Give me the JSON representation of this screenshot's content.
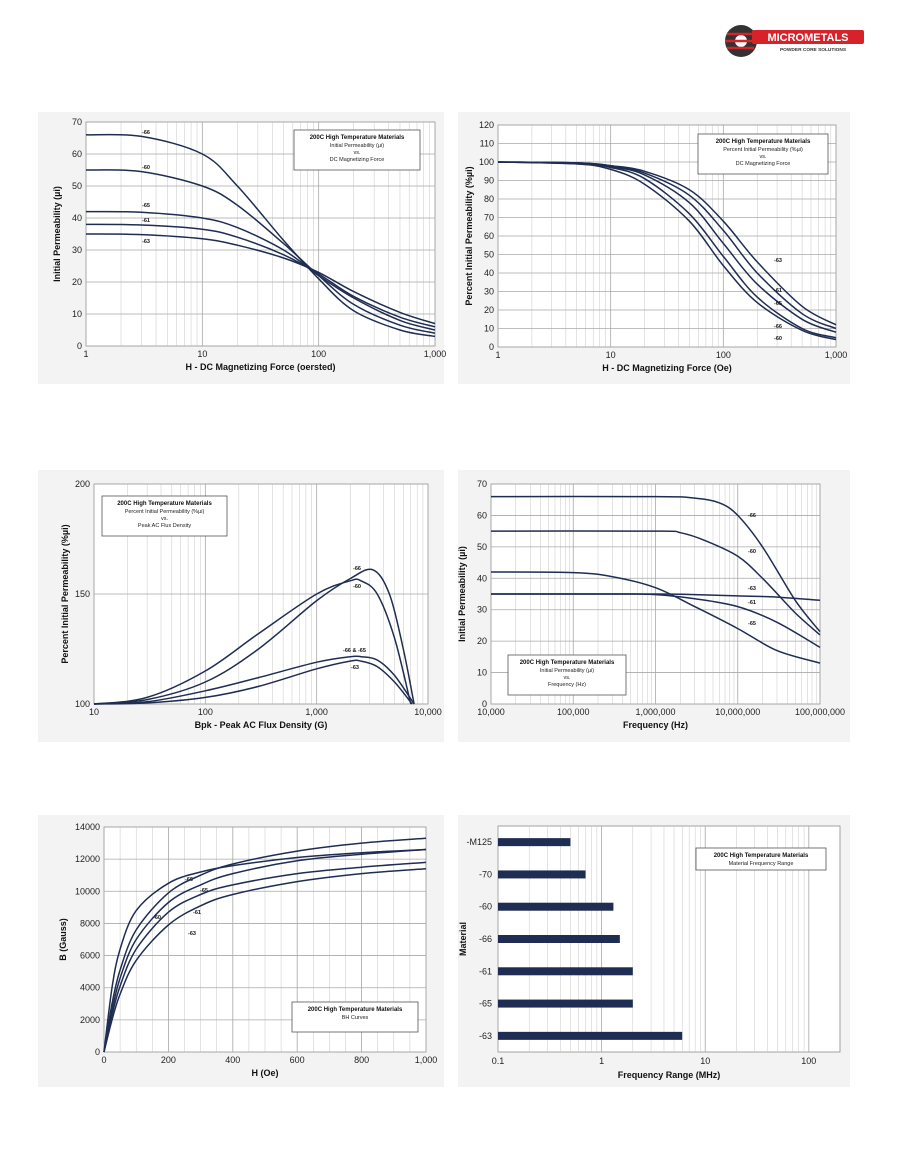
{
  "brand": {
    "name": "MICROMETALS",
    "tagline": "POWDER CORE SOLUTIONS",
    "color": "#d8222a"
  },
  "chart_data": [
    {
      "id": "c1",
      "type": "line",
      "title": "200C High Temperature Materials",
      "subtitle": [
        "Initial Permeability (µi)",
        "vs.",
        "DC Magnetizing Force"
      ],
      "xlabel": "H - DC Magnetizing Force (oersted)",
      "ylabel": "Initial Permeability (µi)",
      "xscale": "log",
      "xlim": [
        1,
        1000
      ],
      "ylim": [
        0,
        70
      ],
      "yticks": [
        0,
        10,
        20,
        30,
        40,
        50,
        60,
        70
      ],
      "xticks": [
        1,
        10,
        100,
        1000
      ],
      "xticklabels": [
        "1",
        "10",
        "100",
        "1,000"
      ],
      "series": [
        {
          "name": "-66",
          "x": [
            1,
            3,
            10,
            20,
            50,
            100,
            200,
            500,
            1000
          ],
          "y": [
            66,
            65.5,
            60,
            50,
            33,
            21,
            11,
            5,
            3
          ]
        },
        {
          "name": "-60",
          "x": [
            1,
            3,
            10,
            20,
            50,
            100,
            200,
            500,
            1000
          ],
          "y": [
            55,
            54.5,
            50,
            44,
            32,
            22,
            13,
            6.5,
            4
          ]
        },
        {
          "name": "-65",
          "x": [
            1,
            3,
            10,
            20,
            50,
            100,
            200,
            500,
            1000
          ],
          "y": [
            42,
            41.8,
            40,
            37,
            30,
            22,
            15,
            8,
            5
          ]
        },
        {
          "name": "-61",
          "x": [
            1,
            3,
            10,
            20,
            50,
            100,
            200,
            500,
            1000
          ],
          "y": [
            38,
            37.8,
            36.5,
            34,
            28.5,
            22.5,
            15.5,
            9,
            6
          ]
        },
        {
          "name": "-63",
          "x": [
            1,
            3,
            10,
            20,
            50,
            100,
            200,
            500,
            1000
          ],
          "y": [
            35,
            34.8,
            33.5,
            31.5,
            27.5,
            23,
            17,
            10.5,
            7
          ]
        }
      ]
    },
    {
      "id": "c2",
      "type": "line",
      "title": "200C High Temperature Materials",
      "subtitle": [
        "Percent Initial Permeability (%µi)",
        "vs.",
        "DC Magnetizing Force"
      ],
      "xlabel": "H - DC Magnetizing Force (Oe)",
      "ylabel": "Percent Initial Permeability (%µi)",
      "xscale": "log",
      "xlim": [
        1,
        1000
      ],
      "ylim": [
        0,
        120
      ],
      "yticks": [
        0,
        10,
        20,
        30,
        40,
        50,
        60,
        70,
        80,
        90,
        100,
        110,
        120
      ],
      "xticks": [
        1,
        10,
        100,
        1000
      ],
      "xticklabels": [
        "1",
        "10",
        "100",
        "1,000"
      ],
      "series": [
        {
          "name": "-63",
          "x": [
            1,
            5,
            10,
            20,
            50,
            100,
            200,
            500,
            1000
          ],
          "y": [
            100,
            99.5,
            98,
            95,
            85,
            68,
            46,
            22,
            12
          ]
        },
        {
          "name": "-61",
          "x": [
            1,
            5,
            10,
            20,
            50,
            100,
            200,
            500,
            1000
          ],
          "y": [
            100,
            99.5,
            98,
            94,
            82,
            63,
            40,
            18,
            10
          ]
        },
        {
          "name": "-65",
          "x": [
            1,
            5,
            10,
            20,
            50,
            100,
            200,
            500,
            1000
          ],
          "y": [
            100,
            99.5,
            97.5,
            93,
            78,
            56,
            34,
            15,
            8
          ]
        },
        {
          "name": "-66",
          "x": [
            1,
            5,
            10,
            20,
            50,
            100,
            200,
            500,
            1000
          ],
          "y": [
            100,
            99,
            97,
            91,
            72,
            49,
            27,
            10,
            5
          ]
        },
        {
          "name": "-60",
          "x": [
            1,
            5,
            10,
            20,
            50,
            100,
            200,
            500,
            1000
          ],
          "y": [
            100,
            99,
            96,
            88,
            68,
            44,
            24,
            9,
            4
          ]
        }
      ]
    },
    {
      "id": "c3",
      "type": "line",
      "title": "200C High Temperature Materials",
      "subtitle": [
        "Percent Initial Permeability (%µi)",
        "vs.",
        "Peak AC Flux Density"
      ],
      "xlabel": "Bpk - Peak AC Flux Density (G)",
      "ylabel": "Percent Initial Permeability (%µi)",
      "xscale": "log",
      "xlim": [
        10,
        10000
      ],
      "ylim": [
        100,
        200
      ],
      "yticks": [
        100,
        150,
        200
      ],
      "xticks": [
        10,
        100,
        1000,
        10000
      ],
      "xticklabels": [
        "10",
        "100",
        "1,000",
        "10,000"
      ],
      "series": [
        {
          "name": "-66",
          "x": [
            10,
            30,
            100,
            300,
            1000,
            2000,
            3200,
            4500,
            6000,
            7500
          ],
          "y": [
            100,
            102,
            110,
            125,
            147,
            157,
            161,
            150,
            125,
            100
          ]
        },
        {
          "name": "-60",
          "x": [
            10,
            30,
            100,
            300,
            1000,
            2000,
            2500,
            3500,
            5000,
            7000
          ],
          "y": [
            100,
            103,
            115,
            132,
            150,
            156,
            156,
            150,
            130,
            100
          ]
        },
        {
          "name": "-66 & -65",
          "x": [
            10,
            30,
            100,
            300,
            1000,
            2000,
            2500,
            3500,
            5000,
            7500
          ],
          "y": [
            100,
            101,
            106,
            112,
            119,
            121.5,
            121.5,
            120,
            113,
            100
          ]
        },
        {
          "name": "-63",
          "x": [
            10,
            30,
            100,
            300,
            1000,
            2000,
            2500,
            3500,
            5000,
            7200
          ],
          "y": [
            100,
            100.5,
            103,
            108,
            116,
            119.5,
            119.5,
            117,
            110,
            100
          ]
        }
      ]
    },
    {
      "id": "c4",
      "type": "line",
      "title": "200C High Temperature Materials",
      "subtitle": [
        "Initial Permeability (µi)",
        "vs.",
        "Frequency (Hz)"
      ],
      "xlabel": "Frequency (Hz)",
      "ylabel": "Initial Permeability (µi)",
      "xscale": "log",
      "xlim": [
        10000,
        100000000
      ],
      "ylim": [
        0,
        70
      ],
      "yticks": [
        0,
        10,
        20,
        30,
        40,
        50,
        60,
        70
      ],
      "xticks": [
        10000,
        100000,
        1000000,
        10000000,
        100000000
      ],
      "xticklabels": [
        "10,000",
        "100,000",
        "1,000,000",
        "10,000,000",
        "100,000,000"
      ],
      "series": [
        {
          "name": "-66",
          "x": [
            10000,
            1000000,
            3000000,
            6000000,
            10000000,
            20000000,
            50000000,
            100000000
          ],
          "y": [
            66,
            66,
            65.5,
            64,
            60,
            50,
            33,
            23
          ]
        },
        {
          "name": "-60",
          "x": [
            10000,
            1000000,
            2000000,
            4000000,
            10000000,
            20000000,
            50000000,
            100000000
          ],
          "y": [
            55,
            55,
            54.5,
            52,
            47,
            40,
            29,
            22
          ]
        },
        {
          "name": "-63",
          "x": [
            10000,
            1000000,
            3000000,
            10000000,
            30000000,
            100000000
          ],
          "y": [
            35,
            35,
            34.8,
            34.4,
            34,
            33
          ]
        },
        {
          "name": "-61",
          "x": [
            10000,
            300000,
            1000000,
            3000000,
            10000000,
            30000000,
            100000000
          ],
          "y": [
            35,
            35,
            34.8,
            33.5,
            31,
            26,
            18
          ]
        },
        {
          "name": "-65",
          "x": [
            10000,
            100000,
            300000,
            1000000,
            3000000,
            10000000,
            30000000,
            100000000
          ],
          "y": [
            42,
            41.8,
            40.5,
            37,
            31,
            24,
            17,
            13
          ]
        }
      ]
    },
    {
      "id": "c5",
      "type": "line",
      "title": "200C High Temperature Materials",
      "subtitle": [
        "BH Curves"
      ],
      "xlabel": "H (Oe)",
      "ylabel": "B (Gauss)",
      "xscale": "linear",
      "xlim": [
        0,
        1000
      ],
      "ylim": [
        0,
        14000
      ],
      "yticks": [
        0,
        2000,
        4000,
        6000,
        8000,
        10000,
        12000,
        14000
      ],
      "yticklabels": [
        "0",
        "2000",
        "4000",
        "6000",
        "8000",
        "10000",
        "12000",
        "14000"
      ],
      "xticks": [
        0,
        200,
        400,
        600,
        800,
        1000
      ],
      "xticklabels": [
        "0",
        "200",
        "400",
        "600",
        "800",
        "1,000"
      ],
      "series": [
        {
          "name": "-66",
          "x": [
            0,
            25,
            50,
            100,
            200,
            300,
            400,
            600,
            800,
            1000
          ],
          "y": [
            0,
            4000,
            6400,
            8800,
            10500,
            11200,
            11600,
            12100,
            12400,
            12600
          ]
        },
        {
          "name": "-60",
          "x": [
            0,
            25,
            50,
            100,
            200,
            300,
            400,
            600,
            800,
            1000
          ],
          "y": [
            0,
            3000,
            5100,
            7600,
            9900,
            11000,
            11700,
            12500,
            13000,
            13300
          ]
        },
        {
          "name": "-65",
          "x": [
            0,
            25,
            50,
            100,
            200,
            300,
            400,
            600,
            800,
            1000
          ],
          "y": [
            0,
            2600,
            4600,
            7000,
            9300,
            10400,
            11100,
            11900,
            12300,
            12600
          ]
        },
        {
          "name": "-61",
          "x": [
            0,
            25,
            50,
            100,
            200,
            300,
            400,
            600,
            800,
            1000
          ],
          "y": [
            0,
            2300,
            4100,
            6400,
            8700,
            9800,
            10400,
            11100,
            11500,
            11800
          ]
        },
        {
          "name": "-63",
          "x": [
            0,
            25,
            50,
            100,
            200,
            300,
            400,
            600,
            800,
            1000
          ],
          "y": [
            0,
            2000,
            3600,
            5700,
            7900,
            9100,
            9800,
            10600,
            11100,
            11400
          ]
        }
      ]
    },
    {
      "id": "c6",
      "type": "bar",
      "title": "200C High Temperature Materials",
      "subtitle": [
        "Material Frequency Range"
      ],
      "xlabel": "Frequency Range (MHz)",
      "ylabel": "Material",
      "xscale": "log",
      "xlim": [
        0.1,
        200
      ],
      "xticks": [
        0.1,
        1,
        10,
        100
      ],
      "xticklabels": [
        "0.1",
        "1",
        "10",
        "100"
      ],
      "categories": [
        "-M125",
        "-70",
        "-60",
        "-66",
        "-61",
        "-65",
        "-63"
      ],
      "values": [
        0.5,
        0.7,
        1.3,
        1.5,
        2,
        2,
        6
      ]
    }
  ]
}
